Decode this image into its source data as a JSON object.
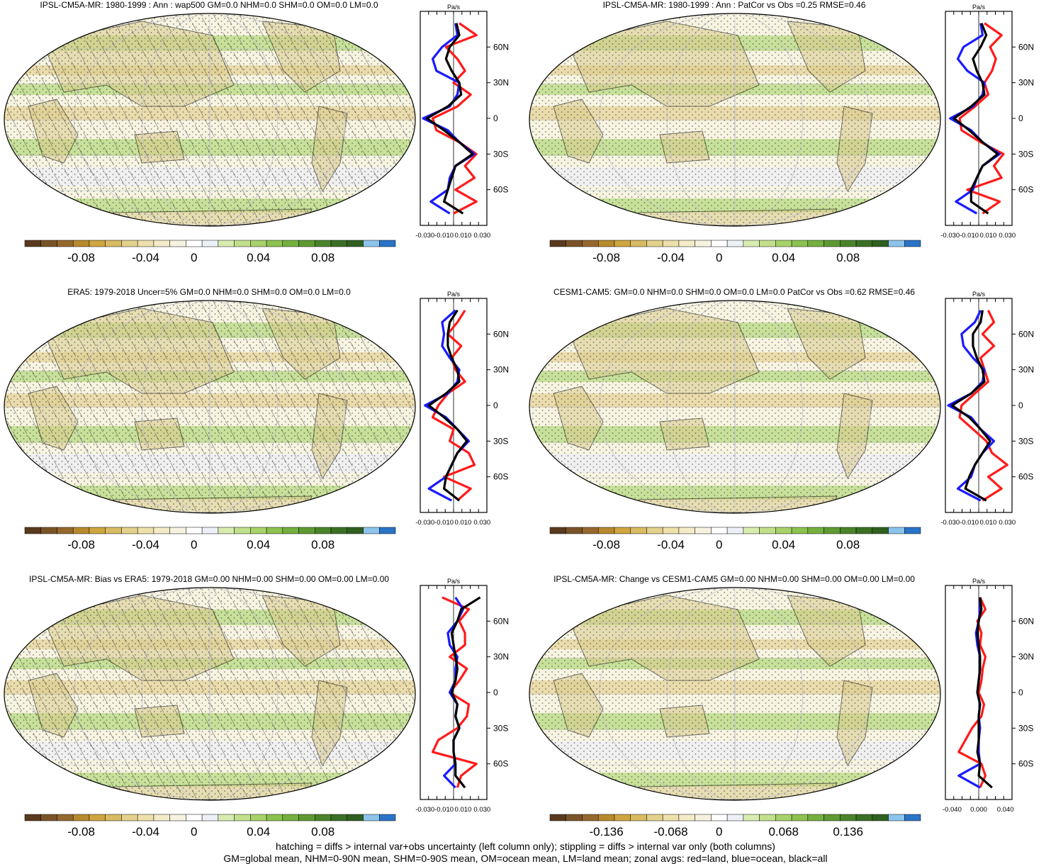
{
  "chart_data": [
    {
      "type": "heatmap",
      "panel": "top-left",
      "title": "IPSL-CM5A-MR: 1980-1999 : Ann : wap500 GM=0.0 NHM=0.0 SHM=0.0 OM=0.0 LM=0.0",
      "colorbar_ticks": [
        "-0.08",
        "-0.04",
        "0",
        "0.04",
        "0.08"
      ],
      "zonal_unit": "Pa/s",
      "zonal_x_ticks": [
        "-0.030",
        "-0.010",
        "0.010",
        "0.030"
      ],
      "zonal_xlim": [
        -0.035,
        0.035
      ],
      "zonal_y_ticks": [
        "60N",
        "30N",
        "0",
        "30S",
        "60S"
      ],
      "zonal_series": [
        {
          "color": "red",
          "lat": [
            80,
            70,
            60,
            50,
            40,
            30,
            20,
            10,
            0,
            -10,
            -20,
            -30,
            -40,
            -50,
            -60,
            -70,
            -80
          ],
          "values": [
            0.006,
            0.024,
            -0.008,
            0.004,
            0.012,
            0.0,
            0.018,
            0.004,
            -0.022,
            -0.018,
            0.006,
            0.024,
            0.012,
            0.022,
            0.002,
            0.024,
            0.0
          ]
        },
        {
          "color": "blue",
          "lat": [
            80,
            70,
            60,
            50,
            40,
            30,
            20,
            10,
            0,
            -10,
            -20,
            -30,
            -40,
            -50,
            -60,
            -70,
            -80
          ],
          "values": [
            0.002,
            0.004,
            -0.012,
            -0.022,
            -0.018,
            0.006,
            0.004,
            -0.004,
            -0.032,
            -0.006,
            0.006,
            0.022,
            0.002,
            -0.004,
            -0.006,
            -0.024,
            -0.004
          ]
        },
        {
          "color": "black",
          "lat": [
            80,
            70,
            60,
            50,
            40,
            30,
            20,
            10,
            0,
            -10,
            -20,
            -30,
            -40,
            -50,
            -60,
            -70,
            -80
          ],
          "values": [
            0.003,
            0.006,
            -0.004,
            -0.008,
            -0.002,
            0.006,
            0.008,
            -0.006,
            -0.028,
            -0.01,
            0.006,
            0.02,
            0.002,
            -0.002,
            -0.006,
            -0.01,
            0.01
          ]
        }
      ]
    },
    {
      "type": "heatmap",
      "panel": "top-right",
      "title": "IPSL-CM5A-MR: 1980-1999 : Ann : PatCor vs Obs =0.25 RMSE=0.46",
      "colorbar_ticks": [
        "-0.08",
        "-0.04",
        "0",
        "0.04",
        "0.08"
      ],
      "zonal_unit": "Pa/s",
      "zonal_x_ticks": [
        "-0.030",
        "-0.010",
        "0.010",
        "0.030"
      ],
      "zonal_xlim": [
        -0.035,
        0.035
      ],
      "zonal_y_ticks": [
        "60N",
        "30N",
        "0",
        "30S",
        "60S"
      ],
      "zonal_series": [
        {
          "color": "red",
          "lat": [
            80,
            70,
            60,
            50,
            40,
            30,
            20,
            10,
            0,
            -10,
            -20,
            -30,
            -40,
            -50,
            -60,
            -70,
            -80
          ],
          "values": [
            0.006,
            0.024,
            0.012,
            0.018,
            0.014,
            0.006,
            0.01,
            -0.004,
            -0.02,
            -0.018,
            0.002,
            0.026,
            0.016,
            0.024,
            -0.012,
            0.022,
            0.004
          ]
        },
        {
          "color": "blue",
          "lat": [
            80,
            70,
            60,
            50,
            40,
            30,
            20,
            10,
            0,
            -10,
            -20,
            -30,
            -40,
            -50,
            -60,
            -70,
            -80
          ],
          "values": [
            0.002,
            0.004,
            -0.016,
            -0.022,
            -0.012,
            0.006,
            0.004,
            -0.006,
            -0.03,
            -0.008,
            0.004,
            0.022,
            0.004,
            -0.002,
            -0.006,
            -0.024,
            -0.002
          ]
        },
        {
          "color": "black",
          "lat": [
            80,
            70,
            60,
            50,
            40,
            30,
            20,
            10,
            0,
            -10,
            -20,
            -30,
            -40,
            -50,
            -60,
            -70,
            -80
          ],
          "values": [
            0.003,
            0.008,
            0.002,
            -0.006,
            -0.002,
            0.004,
            0.006,
            -0.008,
            -0.026,
            -0.01,
            0.004,
            0.02,
            0.004,
            -0.002,
            -0.008,
            -0.008,
            0.01
          ]
        }
      ]
    },
    {
      "type": "heatmap",
      "panel": "middle-left",
      "title": "ERA5: 1979-2018 Uncer=5% GM=0.0 NHM=0.0 SHM=0.0 OM=0.0 LM=0.0",
      "colorbar_ticks": [
        "-0.08",
        "-0.04",
        "0",
        "0.04",
        "0.08"
      ],
      "zonal_unit": "Pa/s",
      "zonal_x_ticks": [
        "-0.030",
        "-0.010",
        "0.010",
        "0.030"
      ],
      "zonal_xlim": [
        -0.035,
        0.035
      ],
      "zonal_y_ticks": [
        "60N",
        "30N",
        "0",
        "30S",
        "60S"
      ],
      "zonal_series": [
        {
          "color": "red",
          "lat": [
            80,
            70,
            60,
            50,
            40,
            30,
            20,
            10,
            0,
            -10,
            -20,
            -30,
            -40,
            -50,
            -60,
            -70,
            -80
          ],
          "values": [
            0.012,
            0.004,
            -0.006,
            0.008,
            -0.002,
            0.002,
            0.012,
            -0.006,
            -0.016,
            -0.022,
            0.0,
            -0.004,
            0.016,
            0.022,
            -0.01,
            0.018,
            0.004
          ]
        },
        {
          "color": "blue",
          "lat": [
            80,
            70,
            60,
            50,
            40,
            30,
            20,
            10,
            0,
            -10,
            -20,
            -30,
            -40,
            -50,
            -60,
            -70,
            -80
          ],
          "values": [
            0.002,
            -0.012,
            -0.01,
            -0.012,
            -0.004,
            0.006,
            0.004,
            -0.006,
            -0.03,
            -0.008,
            0.004,
            0.016,
            0.004,
            -0.002,
            -0.008,
            -0.026,
            -0.002
          ]
        },
        {
          "color": "black",
          "lat": [
            80,
            70,
            60,
            50,
            40,
            30,
            20,
            10,
            0,
            -10,
            -20,
            -30,
            -40,
            -50,
            -60,
            -70,
            -80
          ],
          "values": [
            0.004,
            -0.004,
            -0.006,
            -0.006,
            -0.002,
            0.004,
            0.006,
            -0.008,
            -0.026,
            -0.01,
            0.004,
            0.014,
            0.004,
            -0.002,
            -0.008,
            -0.01,
            0.006
          ]
        }
      ]
    },
    {
      "type": "heatmap",
      "panel": "middle-right",
      "title": "CESM1-CAM5: GM=0.0 NHM=0.0 SHM=0.0 OM=0.0 LM=0.0 PatCor vs Obs =0.62 RMSE=0.46",
      "colorbar_ticks": [
        "-0.08",
        "-0.04",
        "0",
        "0.04",
        "0.08"
      ],
      "zonal_unit": "Pa/s",
      "zonal_x_ticks": [
        "-0.030",
        "-0.010",
        "0.010",
        "0.030"
      ],
      "zonal_xlim": [
        -0.035,
        0.035
      ],
      "zonal_y_ticks": [
        "60N",
        "30N",
        "0",
        "30S",
        "60S"
      ],
      "zonal_series": [
        {
          "color": "red",
          "lat": [
            80,
            70,
            60,
            50,
            40,
            30,
            20,
            10,
            0,
            -10,
            -20,
            -30,
            -40,
            -50,
            -60,
            -70,
            -80
          ],
          "values": [
            0.01,
            0.016,
            0.004,
            0.016,
            0.002,
            0.006,
            0.01,
            -0.004,
            -0.018,
            -0.02,
            -0.006,
            0.008,
            0.014,
            0.03,
            0.01,
            0.024,
            0.004
          ]
        },
        {
          "color": "blue",
          "lat": [
            80,
            70,
            60,
            50,
            40,
            30,
            20,
            10,
            0,
            -10,
            -20,
            -30,
            -40,
            -50,
            -60,
            -70,
            -80
          ],
          "values": [
            0.002,
            -0.004,
            -0.018,
            -0.016,
            -0.006,
            0.006,
            0.004,
            -0.008,
            -0.032,
            -0.008,
            0.002,
            0.016,
            0.004,
            -0.004,
            -0.008,
            -0.022,
            0.002
          ]
        },
        {
          "color": "black",
          "lat": [
            80,
            70,
            60,
            50,
            40,
            30,
            20,
            10,
            0,
            -10,
            -20,
            -30,
            -40,
            -50,
            -60,
            -70,
            -80
          ],
          "values": [
            0.004,
            0.002,
            -0.006,
            -0.006,
            -0.002,
            0.004,
            0.006,
            -0.008,
            -0.028,
            -0.01,
            0.002,
            0.012,
            0.004,
            -0.004,
            -0.01,
            -0.014,
            0.008
          ]
        }
      ]
    },
    {
      "type": "heatmap",
      "panel": "bottom-left",
      "title": "IPSL-CM5A-MR: Bias vs ERA5: 1979-2018 GM=0.00 NHM=0.00 SHM=0.00 OM=0.00 LM=0.00",
      "colorbar_ticks": [
        "-0.08",
        "-0.04",
        "0",
        "0.04",
        "0.08"
      ],
      "zonal_unit": "Pa/s",
      "zonal_x_ticks": [
        "-0.030",
        "-0.010",
        "0.010",
        "0.030"
      ],
      "zonal_xlim": [
        -0.035,
        0.035
      ],
      "zonal_y_ticks": [
        "60N",
        "30N",
        "0",
        "30S",
        "60S"
      ],
      "zonal_series": [
        {
          "color": "red",
          "lat": [
            80,
            70,
            60,
            50,
            40,
            30,
            20,
            10,
            0,
            -10,
            -20,
            -30,
            -40,
            -50,
            -60,
            -70,
            -80
          ],
          "values": [
            -0.012,
            0.016,
            0.006,
            0.012,
            0.012,
            -0.004,
            0.014,
            0.006,
            -0.004,
            0.016,
            0.014,
            0.004,
            -0.016,
            -0.022,
            0.024,
            0.008,
            0.004
          ]
        },
        {
          "color": "blue",
          "lat": [
            80,
            70,
            60,
            50,
            40,
            30,
            20,
            10,
            0,
            -10,
            -20,
            -30,
            -40,
            -50,
            -60,
            -70,
            -80
          ],
          "values": [
            0.002,
            0.01,
            0.004,
            -0.006,
            -0.004,
            0.004,
            0.002,
            0.002,
            -0.004,
            0.004,
            0.002,
            0.006,
            0.0,
            0.0,
            0.002,
            -0.01,
            0.002
          ]
        },
        {
          "color": "black",
          "lat": [
            80,
            70,
            60,
            50,
            40,
            30,
            20,
            10,
            0,
            -10,
            -20,
            -30,
            -40,
            -50,
            -60,
            -70,
            -80
          ],
          "values": [
            0.028,
            0.008,
            0.004,
            -0.002,
            0.0,
            0.002,
            0.004,
            0.002,
            -0.002,
            0.004,
            0.002,
            0.006,
            0.0,
            0.0,
            0.002,
            0.002,
            0.012
          ]
        }
      ]
    },
    {
      "type": "heatmap",
      "panel": "bottom-right",
      "title": "IPSL-CM5A-MR: Change vs CESM1-CAM5 GM=0.00 NHM=0.00 SHM=0.00 OM=0.00 LM=0.00",
      "colorbar_ticks": [
        "-0.136",
        "-0.068",
        "0",
        "0.068",
        "0.136"
      ],
      "zonal_unit": "Pa/s",
      "zonal_x_ticks": [
        "-0.040",
        "0.000",
        "0.040"
      ],
      "zonal_xlim": [
        -0.05,
        0.05
      ],
      "zonal_y_ticks": [
        "60N",
        "30N",
        "0",
        "30S",
        "60S"
      ],
      "zonal_series": [
        {
          "color": "red",
          "lat": [
            80,
            70,
            60,
            50,
            40,
            30,
            20,
            10,
            0,
            -10,
            -20,
            -30,
            -40,
            -50,
            -60,
            -70,
            -80
          ],
          "values": [
            0.002,
            0.01,
            -0.002,
            0.004,
            0.002,
            0.01,
            0.006,
            0.004,
            0.0,
            0.008,
            0.004,
            -0.01,
            -0.02,
            -0.03,
            0.004,
            0.01,
            0.002
          ]
        },
        {
          "color": "blue",
          "lat": [
            80,
            70,
            60,
            50,
            40,
            30,
            20,
            10,
            0,
            -10,
            -20,
            -30,
            -40,
            -50,
            -60,
            -70,
            -80
          ],
          "values": [
            0.002,
            0.002,
            0.0,
            -0.004,
            -0.002,
            0.002,
            0.002,
            0.0,
            -0.002,
            0.002,
            0.0,
            0.002,
            0.0,
            0.0,
            0.002,
            -0.03,
            0.002
          ]
        },
        {
          "color": "black",
          "lat": [
            80,
            70,
            60,
            50,
            40,
            30,
            20,
            10,
            0,
            -10,
            -20,
            -30,
            -40,
            -50,
            -60,
            -70,
            -80
          ],
          "values": [
            0.002,
            0.004,
            0.0,
            -0.002,
            0.0,
            0.002,
            0.002,
            0.0,
            -0.002,
            0.002,
            0.0,
            0.0,
            0.0,
            -0.002,
            0.002,
            0.0,
            0.02
          ]
        }
      ]
    }
  ],
  "palette": [
    "#5a3a1e",
    "#7a5428",
    "#96682e",
    "#b78a2e",
    "#cfa640",
    "#d8bb62",
    "#e3d18c",
    "#ede0aa",
    "#f4ecc8",
    "#f6f2e0",
    "#ffffff",
    "#eef0f8",
    "#d8ecb0",
    "#c2e08c",
    "#a8d26a",
    "#8cc24e",
    "#74b03e",
    "#5e9a32",
    "#4a842a",
    "#3a7024",
    "#2f6020",
    "#8cc4ec",
    "#2a74c8"
  ],
  "series_colors": {
    "red": "#ff1a1a",
    "blue": "#1a1aff",
    "black": "#000000"
  },
  "map_colors": {
    "base": "#f7f4e2",
    "band_green": "#b8db82",
    "band_tan": "#e6d49a",
    "grey": "#eeeff5",
    "land_outline": "#000000"
  },
  "footer": {
    "line1": "hatching = diffs > internal var+obs uncertainty (left column only); stippling = diffs > internal var only (both columns)",
    "line2": "GM=global mean, NHM=0-90N mean, SHM=0-90S mean, OM=ocean mean, LM=land mean; zonal avgs: red=land, blue=ocean, black=all"
  }
}
